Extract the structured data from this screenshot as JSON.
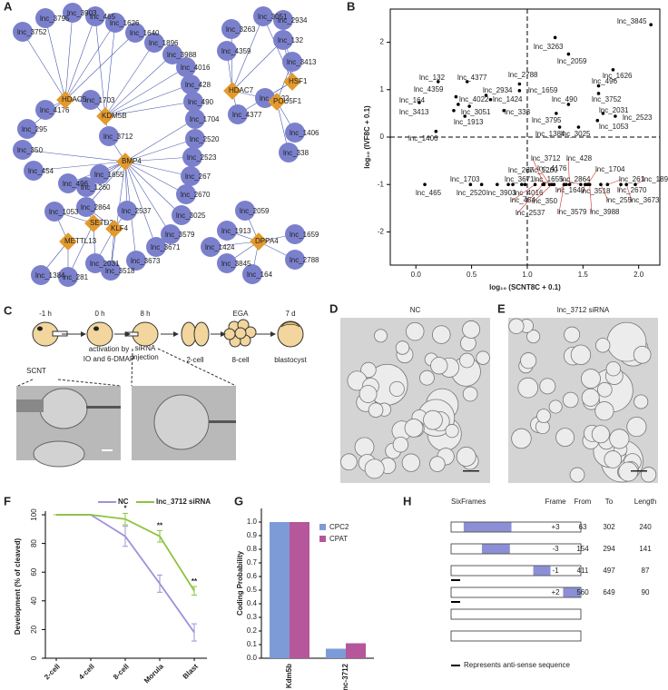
{
  "network": {
    "panel": "A",
    "lncRNAs": [
      "lnc_3752",
      "lnc_3795",
      "lnc_3903",
      "lnc_465",
      "lnc_1626",
      "lnc_1640",
      "lnc_1896",
      "lnc_3988",
      "lnc_4016",
      "lnc_428",
      "lnc_490",
      "lnc_1704",
      "lnc_2520",
      "lnc_2523",
      "lnc_267",
      "lnc_2670",
      "lnc_3025",
      "lnc_3579",
      "lnc_3671",
      "lnc_3673",
      "lnc_3518",
      "lnc_4176",
      "lnc_295",
      "lnc_350",
      "lnc_454",
      "lnc_496",
      "lnc_1260",
      "lnc_1655",
      "lnc_1703",
      "lnc_3712",
      "lnc_1053",
      "lnc_2864",
      "lnc_2537",
      "lnc_1384",
      "lnc_281",
      "lnc_2031",
      "lnc_3051",
      "lnc_2934",
      "lnc_3263",
      "lnc_132",
      "lnc_4359",
      "lnc_3413",
      "lnc_4377",
      "lnc_4022",
      "lnc_1406",
      "lnc_338",
      "lnc_2059",
      "lnc_1913",
      "lnc_1659",
      "lnc_1424",
      "lnc_2788",
      "lnc_3845",
      "lnc_164"
    ],
    "genes": [
      "HDAC5",
      "KDM5B",
      "BMP4",
      "SETD2",
      "KLF4",
      "METTL13",
      "HDAC7",
      "HSF1",
      "POU5F1",
      "DPPA4"
    ]
  },
  "chart_data": [
    {
      "type": "scatter",
      "panel": "B",
      "xlabel": "log₁₀ (SCNT8C + 0.1)",
      "ylabel": "log₁₀ (IVF8C + 0.1)",
      "xlim": [
        -0.23,
        2.19
      ],
      "ylim": [
        -2.7,
        2.7
      ],
      "xticks": [
        {
          "value": 0,
          "label": "0.0"
        },
        0.5,
        {
          "value": 1,
          "label": "1.0"
        },
        1.5,
        {
          "value": 2,
          "label": "2.0"
        }
      ],
      "yticks": [
        -2,
        -1,
        0,
        1,
        2
      ],
      "reference_lines": {
        "x": 1,
        "y": 0
      },
      "series": [
        {
          "color": "#000000",
          "label_color": "#8c8c8c",
          "labels": [
            "lnc_3845",
            "lnc_3263",
            "lnc_2059",
            "lnc_1626",
            "lnc_496",
            "lnc_3752",
            "lnc_490",
            "lnc_3795",
            "lnc_2031",
            "lnc_2523",
            "lnc_1053",
            "lnc_1384",
            "lnc_3025",
            "lnc_132",
            "lnc_4377",
            "lnc_2788",
            "lnc_1659",
            "lnc_2934",
            "lnc_4359",
            "lnc_4022",
            "lnc_1424",
            "lnc_164",
            "lnc_3051",
            "lnc_3413",
            "lnc_338",
            "lnc_1913",
            "lnc_1406",
            "lnc_465",
            "lnc_1703",
            "lnc_267",
            "lnc_2520",
            "lnc_1260",
            "lnc_3903",
            "lnc_3671",
            "lnc_4016"
          ],
          "x": [
            2.11,
            1.25,
            1.37,
            1.77,
            1.64,
            1.64,
            1.37,
            1.26,
            1.68,
            1.79,
            1.63,
            1.29,
            1.46,
            0.2,
            0.46,
            0.93,
            0.93,
            0.63,
            0.36,
            0.38,
            0.67,
            0.03,
            0.48,
            0.34,
            0.79,
            0.44,
            0.18,
            0.08,
            0.49,
            0.83,
            0.59,
            0.95,
            0.73,
            0.87,
            0.98
          ],
          "values": [
            2.37,
            2.1,
            1.75,
            1.42,
            1.08,
            0.92,
            0.69,
            0.5,
            0.5,
            0.44,
            0.35,
            0.21,
            0.21,
            1.17,
            1.17,
            1.12,
            0.98,
            0.88,
            0.85,
            0.69,
            0.79,
            0.73,
            0.65,
            0.56,
            0.56,
            0.44,
            0.12,
            -1.0,
            -1.0,
            -1.0,
            -1.0,
            -1.0,
            -1.0,
            -1.0,
            -1.0
          ]
        },
        {
          "color": "#000000",
          "label_color": "#d0342c",
          "labels": [
            "lnc_3712",
            "lnc_428",
            "lnc_4176",
            "lnc_1704",
            "lnc_1655",
            "lnc_2864",
            "lnc_261",
            "lnc_1896",
            "lnc_1640",
            "lnc_3518",
            "lnc_2670",
            "lnc_454",
            "lnc_350",
            "lnc_255",
            "lnc_3673",
            "lnc_2537",
            "lnc_3579",
            "lnc_3988"
          ],
          "x": [
            1.15,
            1.38,
            1.2,
            1.54,
            1.24,
            1.48,
            1.72,
            1.97,
            1.35,
            1.52,
            1.84,
            1.07,
            1.22,
            1.66,
            1.89,
            1.14,
            1.33,
            1.56
          ],
          "values": [
            -1.0,
            -1.0,
            -1.0,
            -1.0,
            -1.0,
            -1.0,
            -1.0,
            -1.0,
            -1.0,
            -1.0,
            -1.0,
            -1.0,
            -1.0,
            -1.0,
            -1.0,
            -1.0,
            -1.0,
            -1.0
          ]
        }
      ]
    },
    {
      "type": "line",
      "panel": "F",
      "ylabel": "Development (% of cleaved)",
      "categories": [
        "2-cell",
        "4-cell",
        "8-cell",
        "Morula",
        "Blast"
      ],
      "ylim": [
        0,
        100
      ],
      "yticks": [
        0,
        20,
        40,
        60,
        80,
        100
      ],
      "series": [
        {
          "name": "NC",
          "color": "#9d93d9",
          "values": [
            100,
            100,
            85,
            52,
            18
          ],
          "errors": [
            0,
            0,
            7,
            6,
            6
          ]
        },
        {
          "name": "lnc_3712 siRNA",
          "color": "#8cc43c",
          "values": [
            100,
            100,
            97,
            85,
            47
          ],
          "errors": [
            0,
            0,
            4,
            4,
            3
          ]
        }
      ],
      "significance": [
        null,
        null,
        "*",
        "**",
        "**"
      ]
    },
    {
      "type": "bar",
      "panel": "G",
      "ylabel": "Coding Probability",
      "categories": [
        "Kdm5b",
        "lnc-3712"
      ],
      "ylim": [
        0,
        1.1
      ],
      "yticks": [
        {
          "value": 0,
          "label": "0.0"
        },
        0.1,
        0.2,
        0.3,
        0.4,
        0.5,
        0.6,
        0.7,
        0.8,
        0.9,
        {
          "value": 1,
          "label": "1.0"
        }
      ],
      "series": [
        {
          "name": "CPC2",
          "color": "#7d9bd6",
          "values": [
            1.0,
            0.07
          ]
        },
        {
          "name": "CPAT",
          "color": "#b5579a",
          "values": [
            1.0,
            0.11
          ]
        }
      ]
    }
  ],
  "schematic": {
    "panel": "C",
    "times": [
      "-1 h",
      "0 h",
      "8 h",
      "EGA",
      "7 d"
    ],
    "captions": [
      [
        "SCNT"
      ],
      [
        "activation by",
        "IO and 6-DMAP"
      ],
      [
        "siRNA",
        "injection"
      ],
      [
        "2-cell"
      ],
      [
        "8-cell"
      ],
      [
        "blastocyst"
      ]
    ]
  },
  "micrographs": [
    {
      "panel": "D",
      "title": "NC"
    },
    {
      "panel": "E",
      "title": "lnc_3712 siRNA"
    }
  ],
  "sixframes": {
    "panel": "H",
    "title": "SixFrames",
    "columns": [
      "Frame",
      "From",
      "To",
      "Length"
    ],
    "rows": [
      [
        "+3",
        63,
        302,
        240
      ],
      [
        "-3",
        154,
        294,
        141
      ],
      [
        "-1",
        411,
        497,
        87
      ],
      [
        "+2",
        560,
        649,
        90
      ]
    ],
    "note": "Represents anti-sense sequence"
  }
}
